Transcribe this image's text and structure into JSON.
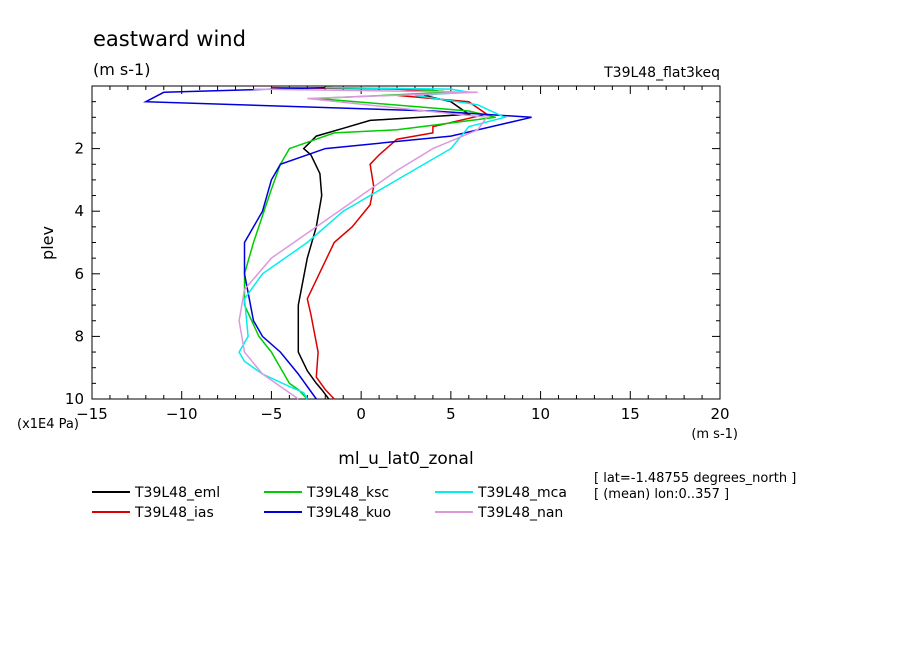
{
  "header": {
    "title": "eastward wind",
    "units": "(m s-1)",
    "run_label": "T39L48_flat3keq"
  },
  "info": {
    "lat_line": "[ lat=-1.48755 degrees_north ]",
    "lon_line": "[ (mean) lon:0..357 ]"
  },
  "chart_data": {
    "type": "line",
    "title": "eastward wind",
    "subtitle": "(m s-1)",
    "xlabel": "ml_u_lat0_zonal",
    "x_units": "(m s-1)",
    "ylabel": "plev",
    "y_units": "(x1E4 Pa)",
    "xlim": [
      -15,
      20
    ],
    "ylim": [
      10,
      0
    ],
    "y_inverted": true,
    "x_ticks": [
      -15,
      -10,
      -5,
      0,
      5,
      10,
      15,
      20
    ],
    "x_tick_labels": [
      "−15",
      "−10",
      "−5",
      "0",
      "5",
      "10",
      "15",
      "20"
    ],
    "y_ticks": [
      2,
      4,
      6,
      8,
      10
    ],
    "y_tick_labels": [
      "2",
      "4",
      "6",
      "8",
      "10"
    ],
    "legend_position": "below",
    "series": [
      {
        "name": "T39L48_eml",
        "color": "#000000",
        "x": [
          -2,
          3,
          5,
          3.5,
          5,
          6,
          0.5,
          -1,
          -2.5,
          -3.2,
          -2.8,
          -2.3,
          -2.2,
          -2.5,
          -3,
          -3.5,
          -3.5,
          -3,
          -2.5,
          -2.2,
          -1.8
        ],
        "y": [
          0.05,
          0.1,
          0.2,
          0.3,
          0.5,
          0.9,
          1.1,
          1.35,
          1.6,
          2.0,
          2.2,
          2.8,
          3.5,
          4.5,
          5.5,
          7.0,
          8.5,
          9.1,
          9.5,
          9.7,
          10.0
        ]
      },
      {
        "name": "T39L48_ias",
        "color": "#dd0000",
        "x": [
          -5,
          2,
          5,
          2,
          6,
          7,
          4,
          4,
          2,
          1,
          0.5,
          0.7,
          0.5,
          -0.5,
          -1.5,
          -3,
          -2.8,
          -2.4,
          -2.5,
          -2.0,
          -1.5
        ],
        "y": [
          0.05,
          0.1,
          0.2,
          0.3,
          0.5,
          0.9,
          1.3,
          1.5,
          1.7,
          2.2,
          2.5,
          3.2,
          3.8,
          4.5,
          5.0,
          6.8,
          7.3,
          8.5,
          9.3,
          9.7,
          10.0
        ]
      },
      {
        "name": "T39L48_ksc",
        "color": "#00cc00",
        "x": [
          -2,
          3,
          5,
          -2.5,
          6,
          7.5,
          2,
          -1.5,
          -4,
          -4.5,
          -5,
          -6,
          -6.5,
          -6.5,
          -5.7,
          -5.0,
          -4.5,
          -4,
          -3.5,
          -3
        ],
        "y": [
          0.05,
          0.1,
          0.2,
          0.4,
          0.8,
          1.0,
          1.4,
          1.5,
          2.0,
          2.5,
          3.3,
          5.0,
          6.0,
          7.0,
          8.0,
          8.5,
          9.0,
          9.5,
          9.7,
          10.0
        ]
      },
      {
        "name": "T39L48_kuo",
        "color": "#0000dd",
        "x": [
          -2,
          -11,
          -12,
          4,
          9.5,
          5,
          -2,
          -4.5,
          -5,
          -5.5,
          -6.5,
          -6.5,
          -6,
          -5.5,
          -4.5,
          -3.5,
          -3,
          -2.5
        ],
        "y": [
          0.05,
          0.2,
          0.5,
          0.8,
          1.0,
          1.6,
          2.0,
          2.5,
          3.0,
          4.0,
          5.0,
          6.0,
          7.5,
          8.0,
          8.5,
          9.2,
          9.6,
          10.0
        ]
      },
      {
        "name": "T39L48_mca",
        "color": "#00eeee",
        "x": [
          -2,
          5,
          6,
          3,
          6.5,
          8,
          6,
          5,
          2,
          -1,
          -3,
          -5.5,
          -6.5,
          -6.3,
          -6.8,
          -6.5,
          -5.5,
          -4,
          -3.2,
          -3
        ],
        "y": [
          0.05,
          0.1,
          0.2,
          0.3,
          0.6,
          1.0,
          1.3,
          2.0,
          3.0,
          4.0,
          5.0,
          6.0,
          6.8,
          8.0,
          8.5,
          8.8,
          9.2,
          9.6,
          9.8,
          10.0
        ]
      },
      {
        "name": "T39L48_nan",
        "color": "#dd99dd",
        "x": [
          -6,
          6.5,
          -3,
          7,
          6.5,
          4,
          2,
          0,
          -2,
          -5,
          -6.5,
          -6.8,
          -6.5,
          -5.5,
          -4.5,
          -3.5
        ],
        "y": [
          0.1,
          0.2,
          0.4,
          1.0,
          1.4,
          2.0,
          2.7,
          3.5,
          4.3,
          5.5,
          6.5,
          7.5,
          8.5,
          9.2,
          9.6,
          10.0
        ]
      }
    ]
  }
}
